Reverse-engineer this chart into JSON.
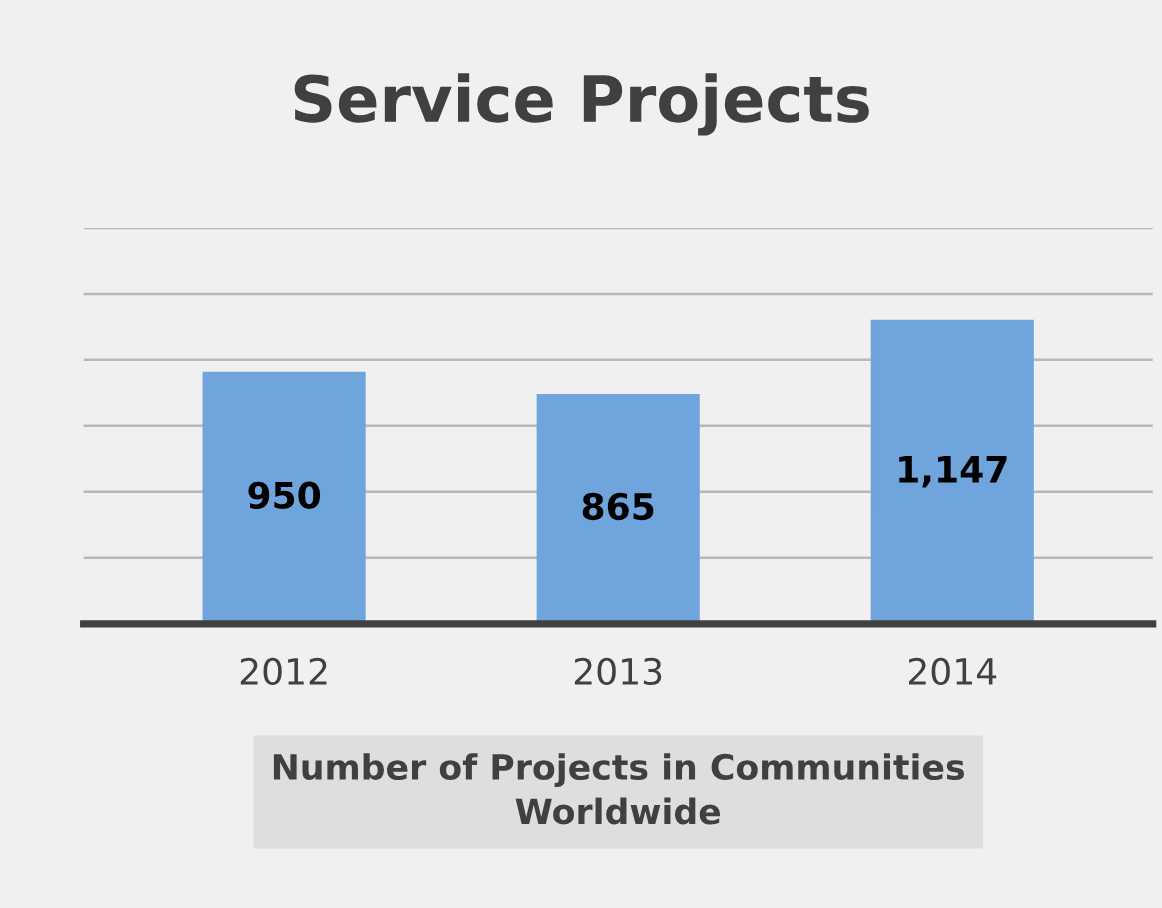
{
  "chart_data": {
    "type": "bar",
    "title": "Service Projects",
    "xlabel": "Number of Projects in Communities\nWorldwide",
    "categories": [
      "2012",
      "2013",
      "2014"
    ],
    "values": [
      950,
      865,
      1147
    ],
    "color": "#6fa5dc",
    "value_labels": [
      "950",
      "865",
      "1,147"
    ],
    "ylim": [
      0,
      1500
    ],
    "yticks": [
      {
        "value": 250,
        "label": null
      },
      {
        "value": 500,
        "label": null
      },
      {
        "value": 750,
        "label": null
      },
      {
        "value": 1000,
        "label": null
      },
      {
        "value": 1250,
        "label": null
      },
      {
        "value": 1500,
        "label": null
      }
    ],
    "tick_labels": "x",
    "grid": "y",
    "legend": false
  }
}
